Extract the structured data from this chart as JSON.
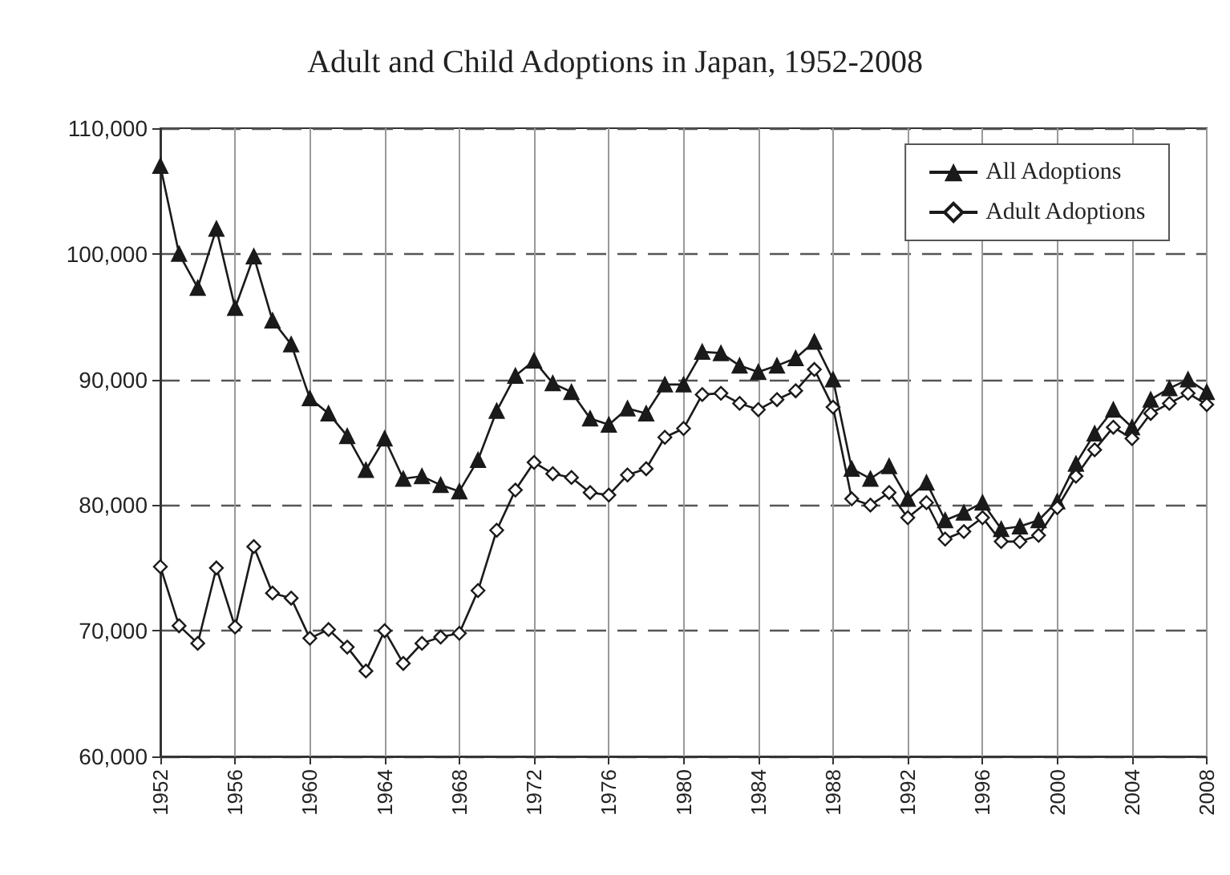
{
  "chart_data": {
    "type": "line",
    "title": "Adult and Child Adoptions in Japan, 1952-2008",
    "x": [
      1952,
      1953,
      1954,
      1955,
      1956,
      1957,
      1958,
      1959,
      1960,
      1961,
      1962,
      1963,
      1964,
      1965,
      1966,
      1967,
      1968,
      1969,
      1970,
      1971,
      1972,
      1973,
      1974,
      1975,
      1976,
      1977,
      1978,
      1979,
      1980,
      1981,
      1982,
      1983,
      1984,
      1985,
      1986,
      1987,
      1988,
      1989,
      1990,
      1991,
      1992,
      1993,
      1994,
      1995,
      1996,
      1997,
      1998,
      1999,
      2000,
      2001,
      2002,
      2003,
      2004,
      2005,
      2006,
      2007,
      2008
    ],
    "series": [
      {
        "name": "All Adoptions",
        "color": "#1a1a1a",
        "marker": "triangle",
        "values": [
          107000,
          100000,
          97300,
          102000,
          95700,
          99800,
          94700,
          92800,
          88500,
          87300,
          85500,
          82800,
          85300,
          82100,
          82300,
          81600,
          81100,
          83600,
          87500,
          90300,
          91500,
          89700,
          89000,
          86900,
          86400,
          87700,
          87300,
          89600,
          89600,
          92200,
          92100,
          91100,
          90600,
          91100,
          91700,
          93000,
          90000,
          82900,
          82100,
          83100,
          80500,
          81800,
          78800,
          79400,
          80200,
          78100,
          78300,
          78800,
          80300,
          83300,
          85700,
          87600,
          86200,
          88400,
          89300,
          90000,
          89000
        ]
      },
      {
        "name": "Adult Adoptions",
        "color": "#1a1a1a",
        "marker": "diamond",
        "values": [
          75100,
          70400,
          69000,
          75000,
          70300,
          76700,
          73000,
          72600,
          69400,
          70100,
          68700,
          66800,
          70000,
          67400,
          69000,
          69500,
          69800,
          73200,
          78000,
          81200,
          83400,
          82500,
          82200,
          81000,
          80800,
          82400,
          82900,
          85400,
          86100,
          88800,
          88900,
          88100,
          87600,
          88400,
          89100,
          90800,
          87800,
          80500,
          80000,
          81000,
          79000,
          80200,
          77300,
          77900,
          79000,
          77100,
          77100,
          77600,
          79800,
          82300,
          84400,
          86200,
          85300,
          87300,
          88100,
          88900,
          88000
        ]
      }
    ],
    "xlim": [
      1952,
      2008
    ],
    "xticks": [
      1952,
      1956,
      1960,
      1964,
      1968,
      1972,
      1976,
      1980,
      1984,
      1988,
      1992,
      1996,
      2000,
      2004,
      2008
    ],
    "ylim": [
      60000,
      110000
    ],
    "yticks": [
      {
        "value": 60000,
        "label": "60,000"
      },
      {
        "value": 70000,
        "label": "70,000"
      },
      {
        "value": 80000,
        "label": "80,000"
      },
      {
        "value": 90000,
        "label": "90,000"
      },
      {
        "value": 100000,
        "label": "100,000"
      },
      {
        "value": 110000,
        "label": "110,000"
      }
    ],
    "grid": true,
    "legend": "top right"
  }
}
